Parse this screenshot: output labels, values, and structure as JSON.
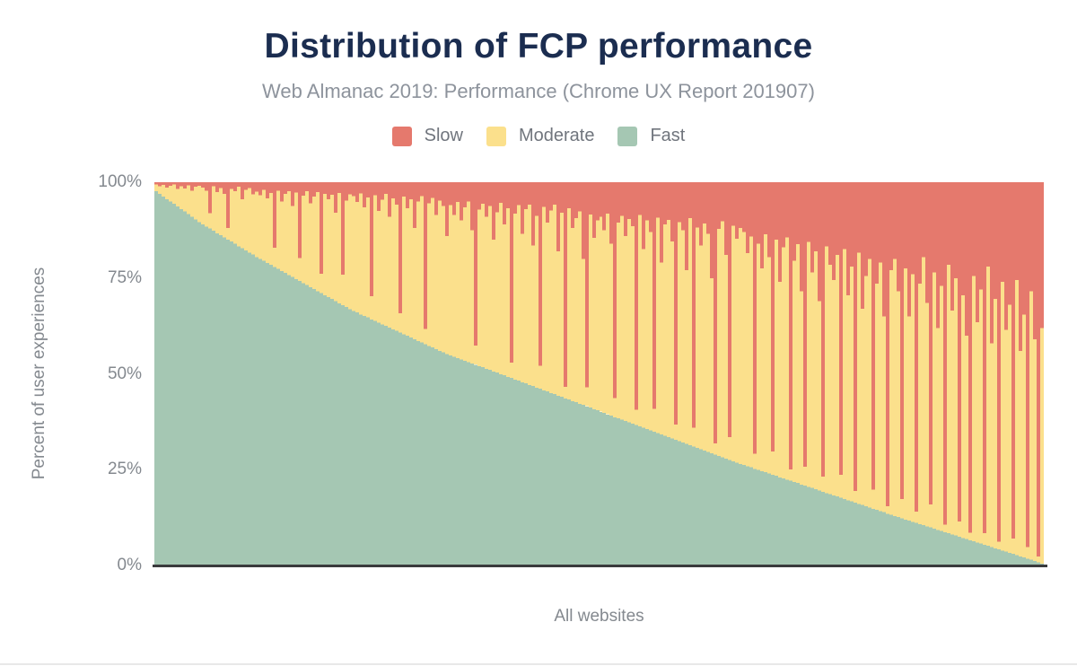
{
  "header": {
    "title": "Distribution of FCP performance",
    "subtitle": "Web Almanac 2019: Performance (Chrome UX Report 201907)"
  },
  "legend": {
    "items": [
      {
        "label": "Slow",
        "color": "#e5796d"
      },
      {
        "label": "Moderate",
        "color": "#fbe08c"
      },
      {
        "label": "Fast",
        "color": "#a5c7b3"
      }
    ]
  },
  "axes": {
    "yticks_top_to_bottom": [
      "100%",
      "75%",
      "50%",
      "25%",
      "0%"
    ],
    "ylabel": "Percent of user experiences",
    "xlabel": "All websites"
  },
  "colors": {
    "title": "#1b2d50",
    "subtitle_text": "#8d939c",
    "axis_text": "#84898f",
    "axis_line": "#3a3b3d",
    "slow": "#e5796d",
    "moderate": "#fbe08c",
    "fast": "#a5c7b3"
  },
  "chart_data": {
    "type": "bar",
    "stacked": true,
    "units": "percent of user experiences, each bar sums to 100",
    "title": "Distribution of FCP performance",
    "subtitle": "Web Almanac 2019: Performance (Chrome UX Report 201907)",
    "xlabel": "All websites",
    "ylabel": "Percent of user experiences",
    "ylim": [
      0,
      100
    ],
    "yticks": [
      "0%",
      "25%",
      "50%",
      "75%",
      "100%"
    ],
    "grid": false,
    "legend_position": "top",
    "bar_count": 248,
    "moderate_rule": "Moderate = 100 - Fast - Slow",
    "series": [
      {
        "name": "Fast",
        "color": "#a5c7b3",
        "values": [
          97.6,
          96.9,
          96.3,
          95.6,
          95.0,
          94.4,
          93.7,
          93.0,
          92.4,
          91.7,
          91.0,
          90.3,
          89.6,
          89.0,
          88.4,
          87.9,
          87.3,
          86.7,
          86.2,
          85.6,
          85.0,
          84.5,
          83.9,
          83.3,
          82.8,
          82.2,
          81.6,
          81.1,
          80.5,
          80.0,
          79.5,
          78.9,
          78.4,
          77.9,
          77.4,
          76.8,
          76.3,
          75.8,
          75.3,
          74.7,
          74.2,
          73.7,
          73.2,
          72.6,
          72.1,
          71.6,
          71.1,
          70.5,
          70.0,
          69.5,
          69.0,
          68.4,
          67.9,
          67.4,
          66.9,
          66.4,
          66.0,
          65.5,
          65.1,
          64.7,
          64.2,
          63.8,
          63.4,
          62.9,
          62.5,
          62.1,
          61.6,
          61.2,
          60.8,
          60.3,
          59.9,
          59.5,
          59.0,
          58.6,
          58.2,
          57.7,
          57.3,
          56.9,
          56.4,
          56.0,
          55.6,
          55.1,
          54.8,
          54.5,
          54.1,
          53.8,
          53.4,
          53.1,
          52.7,
          52.4,
          52.0,
          51.7,
          51.3,
          51.0,
          50.6,
          50.3,
          49.9,
          49.6,
          49.2,
          48.9,
          48.5,
          48.2,
          47.8,
          47.5,
          47.1,
          46.8,
          46.4,
          46.1,
          45.7,
          45.4,
          45.0,
          44.7,
          44.3,
          44.0,
          43.6,
          43.3,
          42.9,
          42.6,
          42.2,
          41.9,
          41.5,
          41.2,
          40.8,
          40.5,
          40.1,
          39.8,
          39.4,
          39.1,
          38.7,
          38.4,
          38.0,
          37.7,
          37.3,
          37.0,
          36.6,
          36.3,
          35.9,
          35.6,
          35.2,
          34.9,
          34.5,
          34.2,
          33.8,
          33.5,
          33.1,
          32.8,
          32.4,
          32.1,
          31.7,
          31.4,
          31.0,
          30.7,
          30.3,
          30.0,
          29.6,
          29.3,
          28.9,
          28.6,
          28.2,
          27.9,
          27.5,
          27.2,
          26.8,
          26.5,
          26.2,
          25.9,
          25.6,
          25.2,
          24.9,
          24.6,
          24.3,
          24.0,
          23.7,
          23.4,
          23.0,
          22.7,
          22.4,
          22.1,
          21.8,
          21.5,
          21.1,
          20.8,
          20.5,
          20.2,
          19.9,
          19.6,
          19.2,
          18.9,
          18.6,
          18.3,
          18.0,
          17.7,
          17.3,
          17.0,
          16.7,
          16.4,
          16.1,
          15.8,
          15.4,
          15.1,
          14.8,
          14.5,
          14.2,
          13.9,
          13.5,
          13.2,
          12.9,
          12.6,
          12.3,
          12.0,
          11.7,
          11.4,
          11.1,
          10.8,
          10.5,
          10.2,
          9.9,
          9.6,
          9.3,
          9.0,
          8.7,
          8.4,
          8.1,
          7.8,
          7.5,
          7.2,
          6.9,
          6.6,
          6.3,
          6.0,
          5.7,
          5.4,
          5.1,
          4.8,
          4.5,
          4.2,
          3.9,
          3.6,
          3.3,
          3.0,
          2.7,
          2.4,
          2.1,
          1.8,
          1.5,
          1.2,
          0.8,
          0.5
        ]
      },
      {
        "name": "Slow",
        "color": "#e5796d",
        "values": [
          0.6,
          1.0,
          0.7,
          1.4,
          0.9,
          0.6,
          1.8,
          1.0,
          1.6,
          0.8,
          2.2,
          1.2,
          0.9,
          1.4,
          2.2,
          8.1,
          1.1,
          2.6,
          1.5,
          3.0,
          12.0,
          1.8,
          2.4,
          1.2,
          4.5,
          2.0,
          1.5,
          3.2,
          2.5,
          3.4,
          2.0,
          4.2,
          2.8,
          17.1,
          2.2,
          5.0,
          3.1,
          2.4,
          6.2,
          2.7,
          19.8,
          3.5,
          2.3,
          5.5,
          3.8,
          2.6,
          23.9,
          3.0,
          4.4,
          3.3,
          8.0,
          2.8,
          24.1,
          4.8,
          3.2,
          3.6,
          5.2,
          2.9,
          6.5,
          4.0,
          29.8,
          3.4,
          7.5,
          4.6,
          3.1,
          9.0,
          4.2,
          5.8,
          34.2,
          3.8,
          6.8,
          4.4,
          12.0,
          5.0,
          3.6,
          38.3,
          5.5,
          4.1,
          8.5,
          4.8,
          6.2,
          14.0,
          6.0,
          8.5,
          5.2,
          10.0,
          6.6,
          5.0,
          12.5,
          42.6,
          7.2,
          5.6,
          9.0,
          6.2,
          15.0,
          7.8,
          5.4,
          11.0,
          6.8,
          47.1,
          8.2,
          6.0,
          13.5,
          7.0,
          5.8,
          16.5,
          8.8,
          47.9,
          6.4,
          10.5,
          7.4,
          5.9,
          18.0,
          8.0,
          53.4,
          6.8,
          12.0,
          9.4,
          7.6,
          20.0,
          53.5,
          8.4,
          14.5,
          10.0,
          9.0,
          12.5,
          8.2,
          16.0,
          56.3,
          10.5,
          8.8,
          14.0,
          9.6,
          11.5,
          59.4,
          8.5,
          17.5,
          10.0,
          13.0,
          59.1,
          9.2,
          21.0,
          11.0,
          9.8,
          15.5,
          63.2,
          10.4,
          12.5,
          23.0,
          9.4,
          64.0,
          11.8,
          16.5,
          10.8,
          13.5,
          25.0,
          68.1,
          12.2,
          10.2,
          19.0,
          66.5,
          11.4,
          14.8,
          12.0,
          13.0,
          18.5,
          14.2,
          70.8,
          16.0,
          22.5,
          13.6,
          19.5,
          70.3,
          15.0,
          26.0,
          17.0,
          14.4,
          74.9,
          20.5,
          16.2,
          28.5,
          74.2,
          15.6,
          23.5,
          18.0,
          31.0,
          76.8,
          16.8,
          21.5,
          25.5,
          19.0,
          76.3,
          17.5,
          29.5,
          22.0,
          80.6,
          18.4,
          33.0,
          24.5,
          20.0,
          80.2,
          26.5,
          21.0,
          35.0,
          84.5,
          23.0,
          20.0,
          28.5,
          82.7,
          22.5,
          35.0,
          24.0,
          85.9,
          26.5,
          19.5,
          31.5,
          84.1,
          23.5,
          38.0,
          27.0,
          89.3,
          21.5,
          33.5,
          25.0,
          88.5,
          29.5,
          40.0,
          91.4,
          24.5,
          36.5,
          28.0,
          91.6,
          22.0,
          42.0,
          30.5,
          93.8,
          26.0,
          38.5,
          32.0,
          93.0,
          25.5,
          44.0,
          34.5,
          95.2,
          28.5,
          41.0,
          97.7,
          38.0
        ]
      }
    ]
  }
}
